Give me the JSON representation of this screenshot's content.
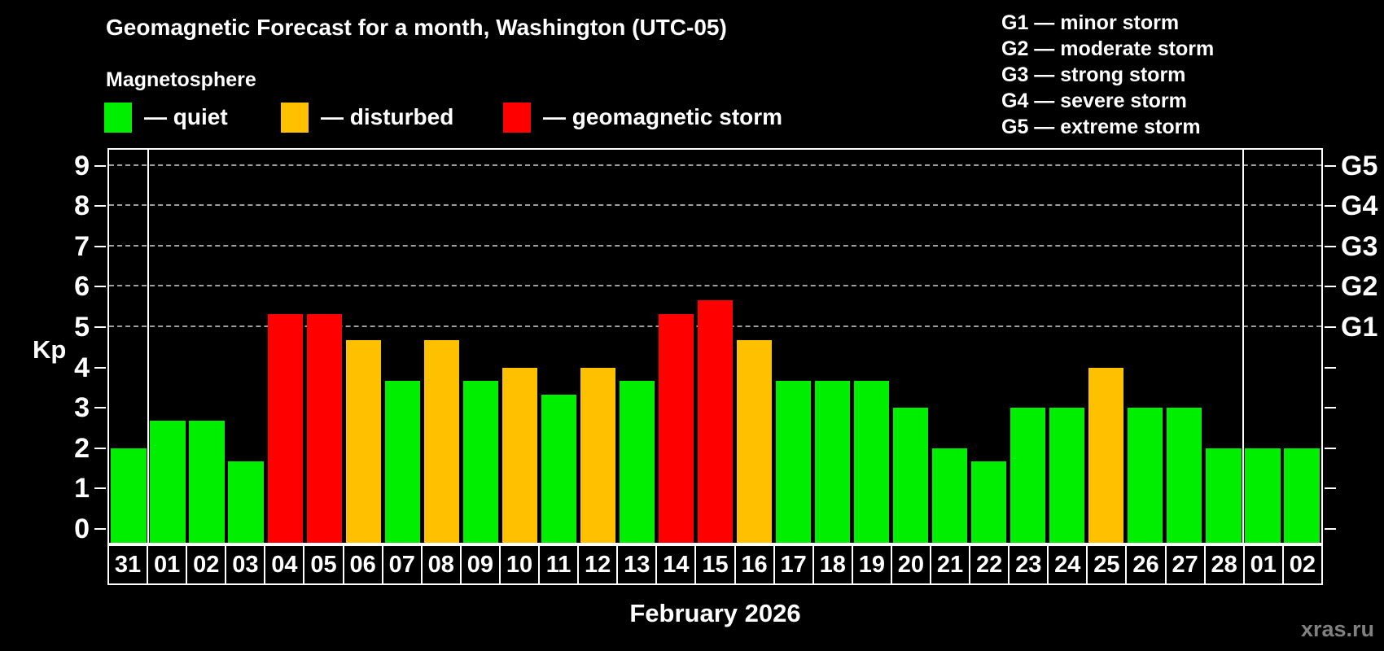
{
  "header": {
    "title": "Geomagnetic Forecast for a month, Washington (UTC-05)",
    "subtitle": "Magnetosphere"
  },
  "legend": {
    "items": [
      {
        "label": "— quiet",
        "status": "quiet"
      },
      {
        "label": "— disturbed",
        "status": "disturbed"
      },
      {
        "label": "— geomagnetic storm",
        "status": "storm"
      }
    ]
  },
  "storm_scale_legend": {
    "items": [
      "G1 — minor storm",
      "G2 — moderate storm",
      "G3 — strong storm",
      "G4 — severe storm",
      "G5 — extreme storm"
    ]
  },
  "colors": {
    "quiet": "#00ee00",
    "disturbed": "#ffc000",
    "storm": "#ff0000",
    "grid": "#9e9e9e",
    "axis": "#ffffff",
    "watermark": "#808080"
  },
  "chart_data": {
    "type": "bar",
    "title": "Geomagnetic Forecast for a month, Washington (UTC-05)",
    "xlabel": "February 2026",
    "ylabel": "Kp",
    "ylim": [
      0,
      9
    ],
    "yticks": [
      0,
      1,
      2,
      3,
      4,
      5,
      6,
      7,
      8,
      9
    ],
    "gridlines_at": [
      5,
      6,
      7,
      8,
      9
    ],
    "grid_style": "dashed",
    "legend_position": "top",
    "right_axis_labels": {
      "5": "G1",
      "6": "G2",
      "7": "G3",
      "8": "G4",
      "9": "G5"
    },
    "categories": [
      "31",
      "01",
      "02",
      "03",
      "04",
      "05",
      "06",
      "07",
      "08",
      "09",
      "10",
      "11",
      "12",
      "13",
      "14",
      "15",
      "16",
      "17",
      "18",
      "19",
      "20",
      "21",
      "22",
      "23",
      "24",
      "25",
      "26",
      "27",
      "28",
      "01",
      "02"
    ],
    "values": [
      2.0,
      2.67,
      2.67,
      1.67,
      5.33,
      5.33,
      4.67,
      3.67,
      4.67,
      3.67,
      4.0,
      3.33,
      4.0,
      3.67,
      5.33,
      5.67,
      4.67,
      3.67,
      3.67,
      3.67,
      3.0,
      2.0,
      1.67,
      3.0,
      3.0,
      4.0,
      3.0,
      3.0,
      2.0,
      2.0,
      2.0
    ],
    "statuses": [
      "quiet",
      "quiet",
      "quiet",
      "quiet",
      "storm",
      "storm",
      "disturbed",
      "quiet",
      "disturbed",
      "quiet",
      "disturbed",
      "quiet",
      "disturbed",
      "quiet",
      "storm",
      "storm",
      "disturbed",
      "quiet",
      "quiet",
      "quiet",
      "quiet",
      "quiet",
      "quiet",
      "quiet",
      "quiet",
      "disturbed",
      "quiet",
      "quiet",
      "quiet",
      "quiet",
      "quiet"
    ],
    "month_separators_after_index": [
      0,
      28
    ]
  },
  "watermark": "xras.ru"
}
